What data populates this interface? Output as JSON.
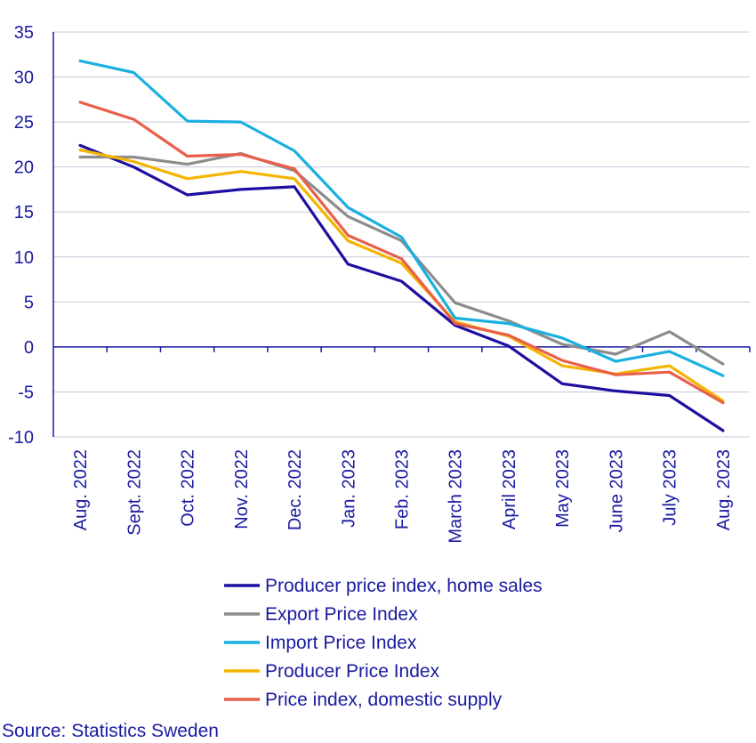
{
  "chart_data": {
    "type": "line",
    "title": "",
    "xlabel": "",
    "ylabel": "",
    "ylim": [
      -10,
      35
    ],
    "yticks": [
      35,
      30,
      25,
      20,
      15,
      10,
      5,
      0,
      -5,
      -10
    ],
    "ytick_labels": [
      "35",
      "30",
      "25",
      "20",
      "15",
      "10",
      "5",
      "0",
      "-5",
      "-10"
    ],
    "grid": true,
    "legend_position": "bottom",
    "categories": [
      "Aug. 2022",
      "Sept. 2022",
      "Oct. 2022",
      "Nov. 2022",
      "Dec. 2022",
      "Jan. 2023",
      "Feb. 2023",
      "March 2023",
      "April 2023",
      "May 2023",
      "June 2023",
      "July 2023",
      "Aug. 2023"
    ],
    "series": [
      {
        "name": "Producer price index, home sales",
        "color": "#1e0fa0",
        "values": [
          22.4,
          20.0,
          16.9,
          17.5,
          17.8,
          9.2,
          7.3,
          2.4,
          0.1,
          -4.1,
          -4.9,
          -5.4,
          -9.3
        ]
      },
      {
        "name": "Export Price Index",
        "color": "#8c8c8c",
        "values": [
          21.1,
          21.1,
          20.3,
          21.5,
          19.6,
          14.5,
          11.8,
          4.9,
          2.9,
          0.3,
          -0.8,
          1.7,
          -1.9
        ]
      },
      {
        "name": "Import Price Index",
        "color": "#1ab0e0",
        "values": [
          31.8,
          30.5,
          25.1,
          25.0,
          21.8,
          15.5,
          12.2,
          3.2,
          2.6,
          1.0,
          -1.6,
          -0.5,
          -3.2
        ]
      },
      {
        "name": "Producer Price Index",
        "color": "#f5b400",
        "values": [
          21.9,
          20.6,
          18.7,
          19.5,
          18.7,
          11.8,
          9.3,
          2.8,
          1.2,
          -2.1,
          -3.0,
          -2.1,
          -6.0
        ]
      },
      {
        "name": "Price index, domestic supply",
        "color": "#e8604a",
        "values": [
          27.2,
          25.3,
          21.2,
          21.4,
          19.8,
          12.4,
          9.8,
          2.6,
          1.3,
          -1.5,
          -3.1,
          -2.8,
          -6.2
        ]
      }
    ],
    "source": "Source: Statistics Sweden"
  },
  "colors": {
    "axis": "#1a1aa0",
    "grid": "#c8c8dc",
    "text": "#1a1aa0"
  }
}
